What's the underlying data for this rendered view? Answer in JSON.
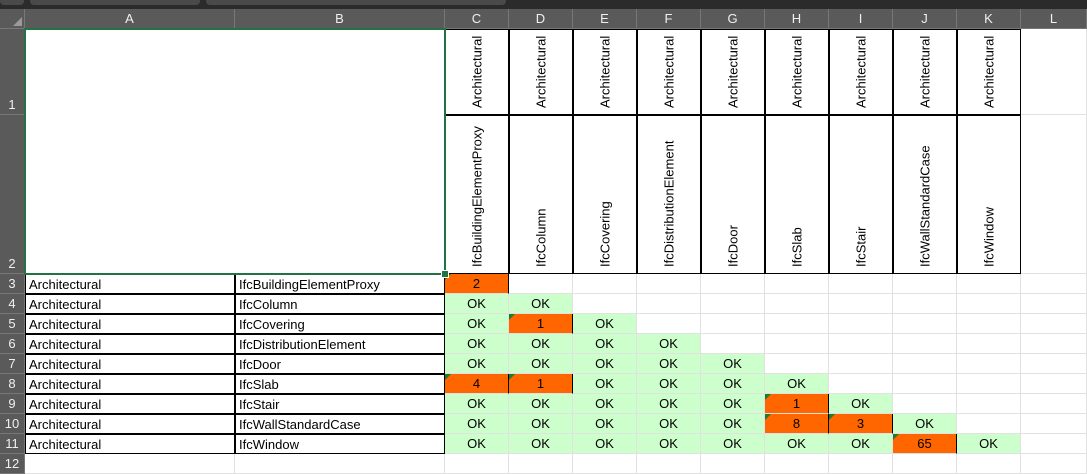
{
  "columns": [
    "A",
    "B",
    "C",
    "D",
    "E",
    "F",
    "G",
    "H",
    "I",
    "J",
    "K",
    "L"
  ],
  "rows": [
    "1",
    "2",
    "3",
    "4",
    "5",
    "6",
    "7",
    "8",
    "9",
    "10",
    "11",
    "12"
  ],
  "header_row1": [
    "Architectural",
    "Architectural",
    "Architectural",
    "Architectural",
    "Architectural",
    "Architectural",
    "Architectural",
    "Architectural",
    "Architectural"
  ],
  "header_row2": [
    "IfcBuildingElementProxy",
    "IfcColumn",
    "IfcCovering",
    "IfcDistributionElement",
    "IfcDoor",
    "IfcSlab",
    "IfcStair",
    "IfcWallStandardCase",
    "IfcWindow"
  ],
  "data_rows": [
    {
      "discipline": "Architectural",
      "type": "IfcBuildingElementProxy",
      "cells": [
        "2"
      ]
    },
    {
      "discipline": "Architectural",
      "type": "IfcColumn",
      "cells": [
        "OK",
        "OK"
      ]
    },
    {
      "discipline": "Architectural",
      "type": "IfcCovering",
      "cells": [
        "OK",
        "1",
        "OK"
      ]
    },
    {
      "discipline": "Architectural",
      "type": "IfcDistributionElement",
      "cells": [
        "OK",
        "OK",
        "OK",
        "OK"
      ]
    },
    {
      "discipline": "Architectural",
      "type": "IfcDoor",
      "cells": [
        "OK",
        "OK",
        "OK",
        "OK",
        "OK"
      ]
    },
    {
      "discipline": "Architectural",
      "type": "IfcSlab",
      "cells": [
        "4",
        "1",
        "OK",
        "OK",
        "OK",
        "OK"
      ]
    },
    {
      "discipline": "Architectural",
      "type": "IfcStair",
      "cells": [
        "OK",
        "OK",
        "OK",
        "OK",
        "OK",
        "1",
        "OK"
      ]
    },
    {
      "discipline": "Architectural",
      "type": "IfcWallStandardCase",
      "cells": [
        "OK",
        "OK",
        "OK",
        "OK",
        "OK",
        "8",
        "3",
        "OK"
      ]
    },
    {
      "discipline": "Architectural",
      "type": "IfcWindow",
      "cells": [
        "OK",
        "OK",
        "OK",
        "OK",
        "OK",
        "OK",
        "OK",
        "65",
        "OK"
      ]
    }
  ],
  "colors": {
    "ok": "#ccffcc",
    "clash": "#ff6600",
    "selection": "#217346",
    "header_bg": "#5a5a5a"
  }
}
